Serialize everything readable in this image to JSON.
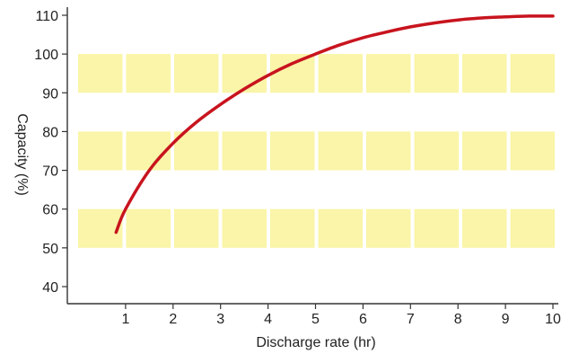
{
  "chart_data": {
    "type": "line",
    "xlabel": "Discharge rate (hr)",
    "ylabel": "Capacity (%)",
    "x_ticks": [
      1,
      2,
      3,
      4,
      5,
      6,
      7,
      8,
      9,
      10
    ],
    "y_ticks": [
      40,
      50,
      60,
      70,
      80,
      90,
      100,
      110
    ],
    "xlim": [
      0,
      10
    ],
    "ylim": [
      38,
      110
    ],
    "grid": false,
    "band_color": "#FAF5A8",
    "line_color": "#C8141E",
    "bands": [
      {
        "y_from": 50,
        "y_to": 60
      },
      {
        "y_from": 70,
        "y_to": 80
      },
      {
        "y_from": 90,
        "y_to": 100
      }
    ],
    "series": [
      {
        "x": [
          0.8,
          1,
          1.5,
          2,
          2.5,
          3,
          3.5,
          4,
          4.5,
          5,
          5.5,
          6,
          6.5,
          7,
          7.5,
          8,
          8.5,
          9,
          9.5,
          10
        ],
        "y": [
          54,
          60,
          70,
          77,
          82.5,
          87,
          91,
          94.5,
          97.5,
          100,
          102.3,
          104.2,
          105.7,
          107,
          108,
          108.8,
          109.3,
          109.6,
          109.8,
          109.8
        ]
      }
    ]
  }
}
